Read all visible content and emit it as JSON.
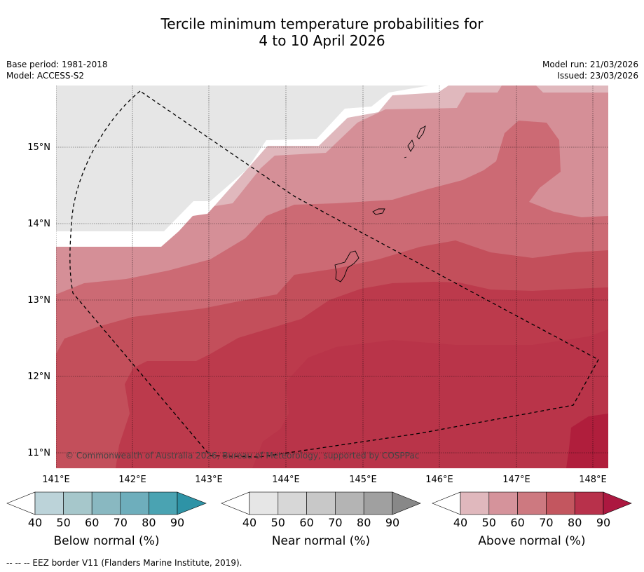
{
  "title": {
    "line1": "Tercile minimum temperature probabilities for",
    "line2": "4 to 10 April 2026"
  },
  "meta": {
    "base_period": "Base period: 1981-2018",
    "model": "Model: ACCESS-S2",
    "model_run": "Model run: 21/03/2026",
    "issued": "Issued: 23/03/2026"
  },
  "map": {
    "lat_labels": [
      "15°N",
      "14°N",
      "13°N",
      "12°N",
      "11°N"
    ],
    "lon_labels": [
      "141°E",
      "142°E",
      "143°E",
      "144°E",
      "145°E",
      "146°E",
      "147°E",
      "148°E"
    ],
    "copyright": "© Commonwealth of Australia 2026, Bureau of Meteorology, supported by COSPPac",
    "category_colors": {
      "near_40": "#e6e6e6",
      "above_40": "#e0b8bd",
      "above_50": "#d58f97",
      "above_60": "#cc6a74",
      "above_70": "#c34f5b",
      "above_80": "#bc3a4c",
      "above_80b": "#b93449",
      "above_90": "#b01e3c"
    }
  },
  "colorbars": [
    {
      "label": "Below normal (%)",
      "ticks": [
        "40",
        "50",
        "60",
        "70",
        "80",
        "90"
      ],
      "colors": [
        "#ffffff",
        "#bcd3d9",
        "#a6c7cb",
        "#89b8c1",
        "#6eaebc",
        "#4aa3b2",
        "#2e93a6"
      ]
    },
    {
      "label": "Near normal (%)",
      "ticks": [
        "40",
        "50",
        "60",
        "70",
        "80",
        "90"
      ],
      "colors": [
        "#ffffff",
        "#e6e6e6",
        "#d7d7d7",
        "#c8c8c8",
        "#b4b4b4",
        "#a0a0a0",
        "#888888"
      ]
    },
    {
      "label": "Above normal (%)",
      "ticks": [
        "40",
        "50",
        "60",
        "70",
        "80",
        "90"
      ],
      "colors": [
        "#ffffff",
        "#e0b8bd",
        "#d5939b",
        "#cd7980",
        "#c3565f",
        "#b8314b",
        "#ac1840"
      ]
    }
  ],
  "footer": "--  --  -- EEZ border V11 (Flanders Marine Institute, 2019)."
}
